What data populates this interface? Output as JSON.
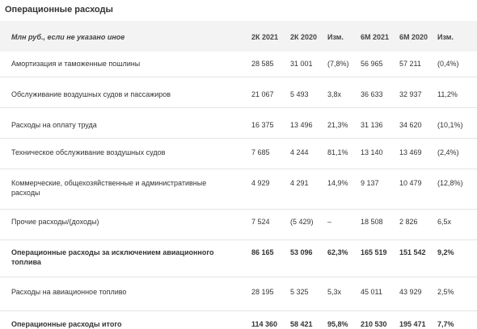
{
  "title": "Операционные расходы",
  "header": {
    "label": "Млн руб., если не указано иное",
    "cols": [
      "2К 2021",
      "2К 2020",
      "Изм.",
      "6М 2021",
      "6М 2020",
      "Изм."
    ]
  },
  "rows": [
    {
      "label": "Амортизация и таможенные пошлины",
      "values": [
        "28 585",
        "31 001",
        "(7,8%)",
        "56 965",
        "57 211",
        "(0,4%)"
      ]
    },
    {
      "label": "Обслуживание воздушных судов и пассажиров",
      "values": [
        "21 067",
        "5 493",
        "3,8x",
        "36 633",
        "32 937",
        "11,2%"
      ]
    },
    {
      "label": "Расходы на оплату труда",
      "values": [
        "16 375",
        "13 496",
        "21,3%",
        "31 136",
        "34 620",
        "(10,1%)"
      ]
    },
    {
      "label": "Техническое обслуживание воздушных судов",
      "values": [
        "7 685",
        "4 244",
        "81,1%",
        "13 140",
        "13 469",
        "(2,4%)"
      ]
    },
    {
      "label": "Коммерческие, общехозяйственные и административные расходы",
      "values": [
        "4 929",
        "4 291",
        "14,9%",
        "9 137",
        "10 479",
        "(12,8%)"
      ]
    },
    {
      "label": "Прочие расходы/(доходы)",
      "values": [
        "7 524",
        "(5 429)",
        "–",
        "18 508",
        "2 826",
        "6,5x"
      ]
    },
    {
      "label": "Операционные расходы за исключением авиационного топлива",
      "values": [
        "86 165",
        "53 096",
        "62,3%",
        "165 519",
        "151 542",
        "9,2%"
      ]
    },
    {
      "label": "Расходы на авиационное топливо",
      "values": [
        "28 195",
        "5 325",
        "5,3x",
        "45 011",
        "43 929",
        "2,5%"
      ]
    },
    {
      "label": "Операционные расходы итого",
      "values": [
        "114 360",
        "58 421",
        "95,8%",
        "210 530",
        "195 471",
        "7,7%"
      ]
    }
  ]
}
